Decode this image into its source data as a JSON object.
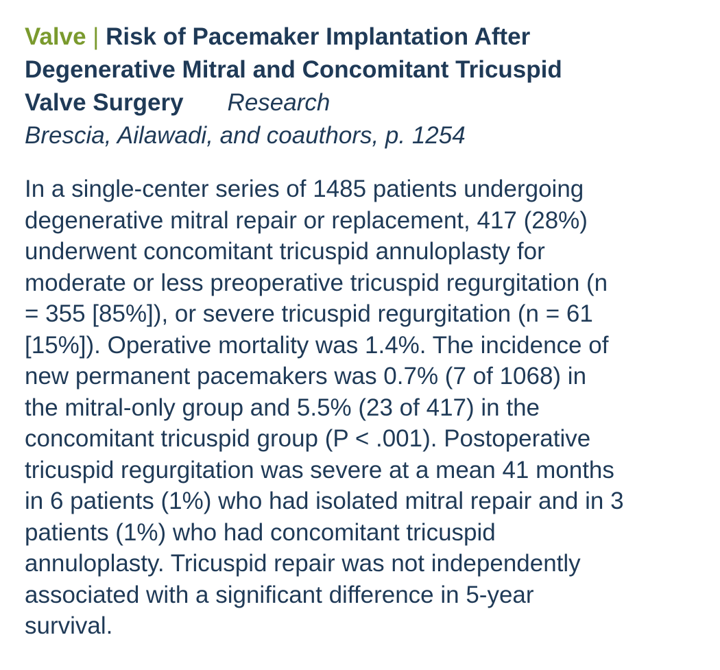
{
  "header": {
    "category": "Valve",
    "separator": " | ",
    "title_lines": [
      "Risk of Pacemaker Implantation After",
      "Degenerative Mitral and Concomitant Tricuspid",
      "Valve Surgery"
    ],
    "article_type": "Research"
  },
  "authors": "Brescia, Ailawadi, and coauthors, p. 1254",
  "abstract_lines": [
    "In a single-center series of 1485 patients undergoing",
    "degenerative mitral repair or replacement, 417 (28%)",
    "underwent concomitant tricuspid annuloplasty for",
    "moderate or less preoperative tricuspid regurgitation (n",
    "= 355 [85%]), or severe tricuspid regurgitation (n = 61",
    "[15%]). Operative mortality was 1.4%. The incidence of",
    "new permanent pacemakers was 0.7% (7 of 1068) in",
    "the mitral-only group and 5.5% (23 of 417) in the",
    "concomitant tricuspid group (P < .001). Postoperative",
    "tricuspid regurgitation was severe at a mean 41 months",
    "in 6 patients (1%) who had isolated mitral repair and in 3",
    "patients (1%) who had concomitant tricuspid",
    "annuloplasty. Tricuspid repair was not independently",
    "associated with a significant difference in 5-year",
    "survival."
  ],
  "colors": {
    "category": "#7a9a2e",
    "text": "#1f3a57"
  }
}
